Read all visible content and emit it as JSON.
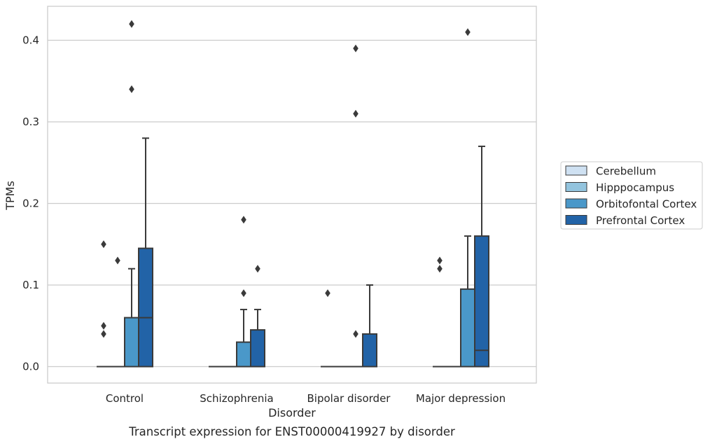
{
  "caption": "Transcript expression for ENST00000419927 by disorder",
  "colors": {
    "Cerebellum": "#cfe1f2",
    "Hipppocampus": "#93c4de",
    "Orbitofontal Cortex": "#4a98c9",
    "Prefrontal Cortex": "#2263a7",
    "edge": "#3a3a3a",
    "grid": "#cccccc",
    "frame": "#cccccc"
  },
  "chart_data": {
    "type": "box",
    "xlabel": "Disorder",
    "ylabel": "TPMs",
    "ylim": [
      -0.02,
      0.442
    ],
    "yticks": [
      "0.0",
      "0.1",
      "0.2",
      "0.3",
      "0.4"
    ],
    "ytick_values": [
      0.0,
      0.1,
      0.2,
      0.3,
      0.4
    ],
    "grid": true,
    "legend_position": "right, outside plot",
    "categories": [
      "Control",
      "Schizophrenia",
      "Bipolar disorder",
      "Major depression"
    ],
    "series": [
      {
        "name": "Cerebellum",
        "boxes": [
          {
            "q1": 0,
            "median": 0,
            "q3": 0,
            "whisker_low": 0,
            "whisker_high": 0,
            "outliers": [
              0.04,
              0.05,
              0.15
            ]
          },
          {
            "q1": 0,
            "median": 0,
            "q3": 0,
            "whisker_low": 0,
            "whisker_high": 0,
            "outliers": []
          },
          {
            "q1": 0,
            "median": 0,
            "q3": 0,
            "whisker_low": 0,
            "whisker_high": 0,
            "outliers": [
              0.09
            ]
          },
          {
            "q1": 0,
            "median": 0,
            "q3": 0,
            "whisker_low": 0,
            "whisker_high": 0,
            "outliers": [
              0.12,
              0.13
            ]
          }
        ]
      },
      {
        "name": "Hipppocampus",
        "boxes": [
          {
            "q1": 0,
            "median": 0,
            "q3": 0,
            "whisker_low": 0,
            "whisker_high": 0,
            "outliers": [
              0.13
            ]
          },
          {
            "q1": 0,
            "median": 0,
            "q3": 0,
            "whisker_low": 0,
            "whisker_high": 0,
            "outliers": []
          },
          {
            "q1": 0,
            "median": 0,
            "q3": 0,
            "whisker_low": 0,
            "whisker_high": 0,
            "outliers": []
          },
          {
            "q1": 0,
            "median": 0,
            "q3": 0,
            "whisker_low": 0,
            "whisker_high": 0,
            "outliers": []
          }
        ]
      },
      {
        "name": "Orbitofontal Cortex",
        "boxes": [
          {
            "q1": 0,
            "median": 0,
            "q3": 0.06,
            "whisker_low": 0,
            "whisker_high": 0.12,
            "outliers": [
              0.34,
              0.42
            ]
          },
          {
            "q1": 0,
            "median": 0,
            "q3": 0.03,
            "whisker_low": 0,
            "whisker_high": 0.07,
            "outliers": [
              0.09,
              0.18
            ]
          },
          {
            "q1": 0,
            "median": 0,
            "q3": 0,
            "whisker_low": 0,
            "whisker_high": 0,
            "outliers": [
              0.04,
              0.31,
              0.39
            ]
          },
          {
            "q1": 0,
            "median": 0,
            "q3": 0.095,
            "whisker_low": 0,
            "whisker_high": 0.16,
            "outliers": [
              0.41
            ]
          }
        ]
      },
      {
        "name": "Prefrontal Cortex",
        "boxes": [
          {
            "q1": 0,
            "median": 0.06,
            "q3": 0.145,
            "whisker_low": 0,
            "whisker_high": 0.28,
            "outliers": []
          },
          {
            "q1": 0,
            "median": 0,
            "q3": 0.045,
            "whisker_low": 0,
            "whisker_high": 0.07,
            "outliers": [
              0.12
            ]
          },
          {
            "q1": 0,
            "median": 0,
            "q3": 0.04,
            "whisker_low": 0,
            "whisker_high": 0.1,
            "outliers": []
          },
          {
            "q1": 0,
            "median": 0.02,
            "q3": 0.16,
            "whisker_low": 0,
            "whisker_high": 0.27,
            "outliers": []
          }
        ]
      }
    ]
  }
}
